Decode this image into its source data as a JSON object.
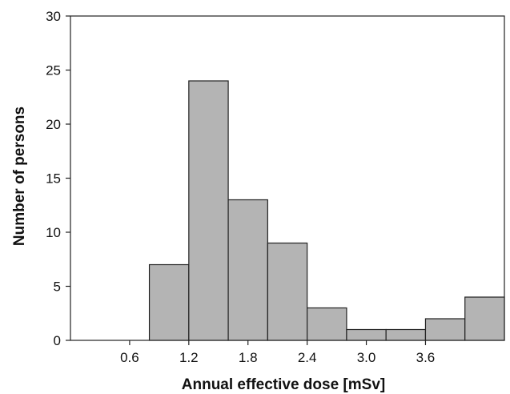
{
  "chart_data": {
    "type": "bar",
    "title": "",
    "xlabel": "Annual effective dose [mSv]",
    "ylabel": "Number of persons",
    "ylim": [
      0,
      30
    ],
    "yticks": [
      "0",
      "5",
      "10",
      "15",
      "20",
      "25",
      "30"
    ],
    "xlim": [
      0.0,
      4.4
    ],
    "xticks": [
      "0.6",
      "1.2",
      "1.8",
      "2.4",
      "3.0",
      "3.6"
    ],
    "bin_width": 0.4,
    "bins": [
      {
        "x": 1.2,
        "value": 7
      },
      {
        "x": 1.6,
        "value": 24
      },
      {
        "x": 2.0,
        "value": 13
      },
      {
        "x": 2.4,
        "value": 9
      },
      {
        "x": 2.8,
        "value": 3
      },
      {
        "x": 3.2,
        "value": 1
      },
      {
        "x": 3.6,
        "value": 1
      },
      {
        "x": 4.0,
        "value": 2
      },
      {
        "x": 4.4,
        "value": 4
      }
    ],
    "grid": false,
    "legend": "none",
    "colors": {
      "bar_fill": "#b4b4b4",
      "bar_stroke": "#222222",
      "axis": "#222222"
    }
  }
}
